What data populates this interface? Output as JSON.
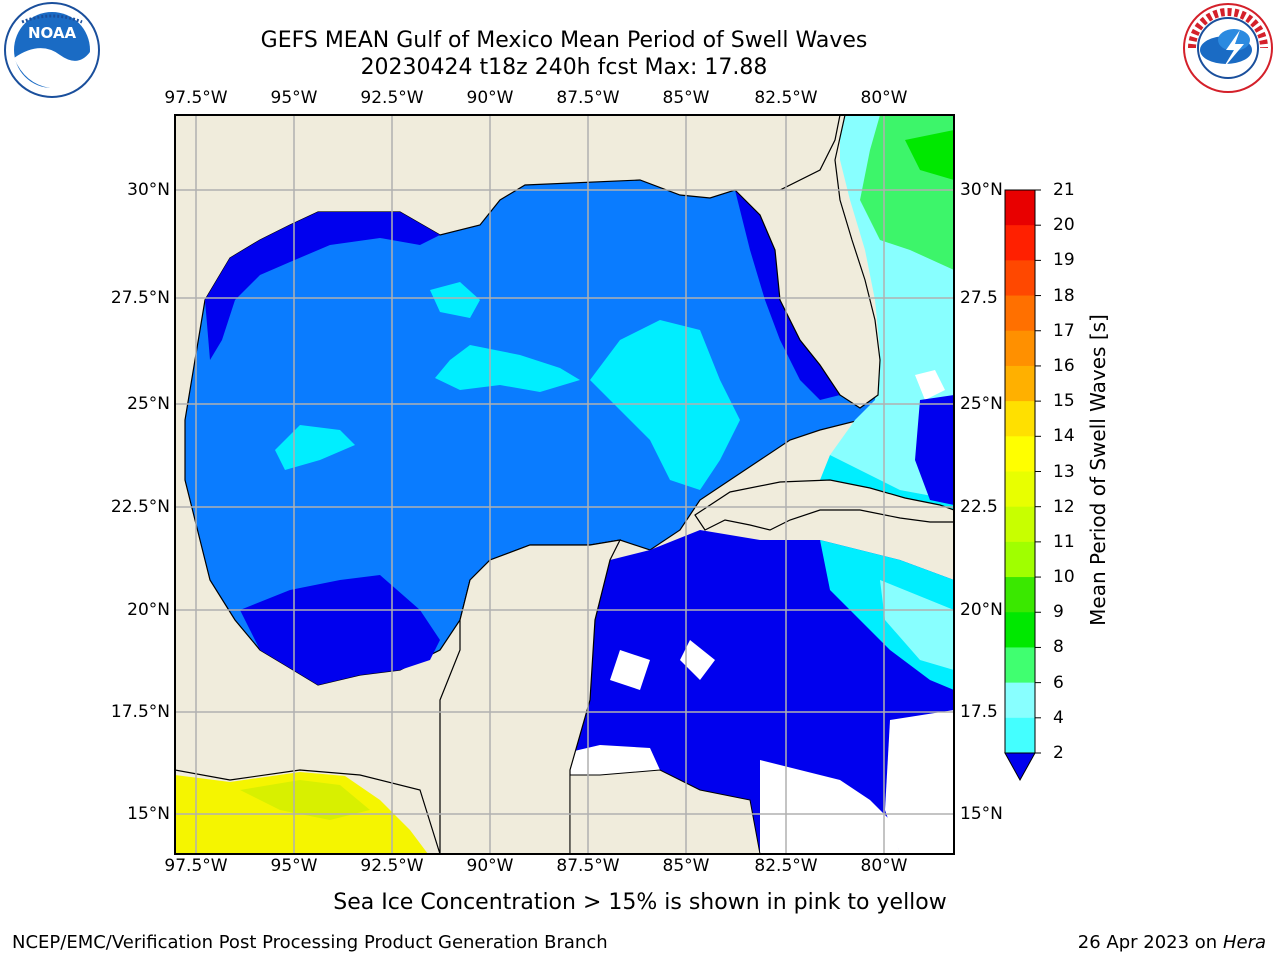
{
  "header": {
    "title_line1": "GEFS MEAN Gulf of Mexico Mean Period of Swell Waves",
    "title_line2": "20230424 t18z 240h fcst   Max: 17.88"
  },
  "logos": {
    "left": {
      "name": "noaa-logo",
      "text": "NOAA"
    },
    "right": {
      "name": "nws-logo",
      "text": "NATIONAL WEATHER SERVICE"
    }
  },
  "map": {
    "lon_ticks": [
      "97.5°W",
      "95°W",
      "92.5°W",
      "90°W",
      "87.5°W",
      "85°W",
      "82.5°W",
      "80°W"
    ],
    "lat_ticks_left": [
      "30°N",
      "27.5°N",
      "25°N",
      "22.5°N",
      "20°N",
      "17.5°N",
      "15°N"
    ],
    "lat_ticks_right": [
      "30°N",
      "27.5",
      "25°N",
      "22.5",
      "20°N",
      "17.5",
      "15°N"
    ],
    "colors": {
      "land": "#f0ecdc",
      "ocean_main": "#0a7cff",
      "ocean_low": "#0000ee",
      "ocean_cyan": "#00eeff",
      "ocean_lightcyan": "#88ffff",
      "ocean_green": "#3df56a",
      "ice_yellow": "#f5f500"
    }
  },
  "colorbar": {
    "title": "Mean Period of Swell Waves [s]",
    "labels": [
      "21",
      "20",
      "19",
      "18",
      "17",
      "16",
      "15",
      "14",
      "13",
      "12",
      "11",
      "10",
      "9",
      "8",
      "6",
      "4",
      "2"
    ],
    "colors": [
      "#e80000",
      "#ff2000",
      "#ff4800",
      "#ff7000",
      "#ff9000",
      "#ffb000",
      "#ffe000",
      "#ffff00",
      "#e8ff00",
      "#c8ff00",
      "#a0ff00",
      "#3ae800",
      "#00e800",
      "#40ff70",
      "#88ffff",
      "#44ffff",
      "#00f0ff",
      "#0080ff"
    ],
    "extend_color": "#0000ee"
  },
  "note": "Sea Ice Concentration > 15% is shown in pink to yellow",
  "footer": {
    "left": "NCEP/EMC/Verification Post Processing Product Generation Branch",
    "date": "26 Apr 2023 on ",
    "machine": "Hera"
  }
}
